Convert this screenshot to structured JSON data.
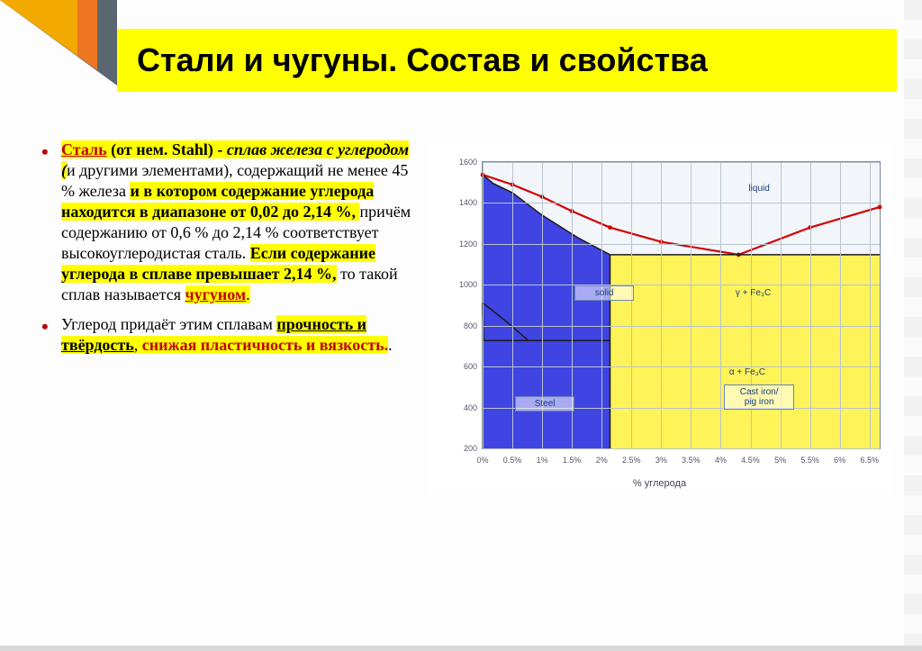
{
  "title": "Стали и чугуны. Состав и свойства",
  "text": {
    "b1": {
      "s1a": "Сталь",
      "s1b": " (от нем. Stahl) - ",
      "s1c": "сплав железа с углеродом (",
      "s1d": "и другими элементами), содержащий не менее 45 % железа ",
      "s1e": "и в котором содержание углерода находится в диапазоне от 0,02 до 2,14 %, ",
      "s1f": "причём содержанию от 0,6 % до 2,14 % соответствует высокоуглеродистая сталь. ",
      "s1g": "Если содержание углерода в сплаве превышает 2,14 %,",
      "s1h": " то такой сплав называется ",
      "s1i": "чугуном",
      "s1j": "."
    },
    "b2": {
      "s2a": "Углерод придаёт этим сплавам ",
      "s2b": "прочность и твёрдость",
      "s2c": ", ",
      "s2d": "снижая пластичность и вязкость.",
      "s2e": "."
    }
  },
  "chart": {
    "x_ticks": [
      "0%",
      "0.5%",
      "1%",
      "1.5%",
      "2%",
      "2.5%",
      "3%",
      "3.5%",
      "4%",
      "4.5%",
      "5%",
      "5.5%",
      "6%",
      "6.5%"
    ],
    "y_ticks": [
      "200",
      "400",
      "600",
      "800",
      "1000",
      "1200",
      "1400",
      "1600"
    ],
    "x_range": [
      0,
      6.67
    ],
    "y_range": [
      200,
      1600
    ],
    "x_title": "% углерода",
    "labels": {
      "liquid": "liquid",
      "solid": "solid",
      "steel": "Steel",
      "castiron": "Cast iron/\npig iron",
      "gfe": "γ + Fe₃C",
      "afe": "α + Fe₃C"
    },
    "regions": {
      "steel_fill": "#3034e0",
      "iron_fill": "#fff24a",
      "bg": "#f2f6fb",
      "grid": "#b9c4cf",
      "border": "#7b8a99"
    },
    "liquidus_pts": [
      [
        0,
        1538
      ],
      [
        0.5,
        1490
      ],
      [
        1.0,
        1430
      ],
      [
        1.5,
        1360
      ],
      [
        2.14,
        1280
      ],
      [
        3.0,
        1210
      ],
      [
        4.3,
        1147
      ],
      [
        5.5,
        1280
      ],
      [
        6.67,
        1380
      ]
    ],
    "solidus_pts": [
      [
        0,
        1538
      ],
      [
        0.18,
        1495
      ],
      [
        0.5,
        1450
      ],
      [
        1.0,
        1340
      ],
      [
        1.6,
        1230
      ],
      [
        2.14,
        1147
      ]
    ],
    "eutectic_y": 1147,
    "A1_pts": [
      [
        0,
        912
      ],
      [
        0.4,
        820
      ],
      [
        0.77,
        727
      ]
    ],
    "eutectoid_y": 727,
    "gamma_alpha_left": [
      [
        0,
        912
      ],
      [
        0.02,
        727
      ]
    ],
    "red_color": "#d40000",
    "black_color": "#1a1a1a"
  },
  "corner_colors": {
    "c1": "#5b6770",
    "c2": "#ee7623",
    "c3": "#f2a900"
  },
  "title_bg": "#ffff00"
}
